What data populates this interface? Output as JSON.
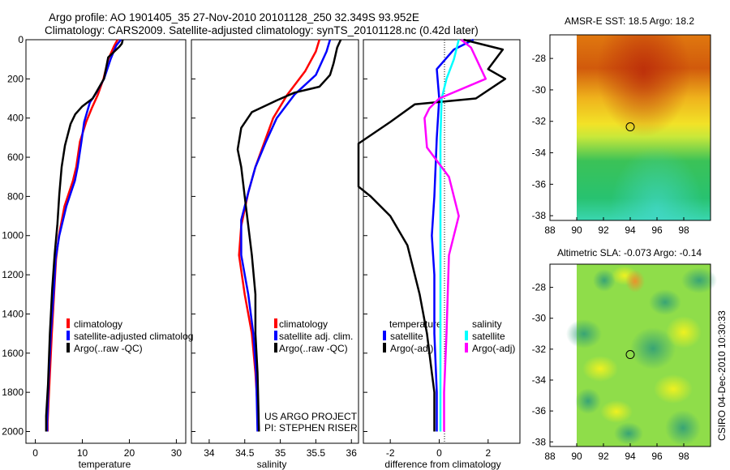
{
  "header": {
    "line1": "Argo profile: AO 1901405_35 27-Nov-2010 20101128_250 32.349S 93.952E",
    "line2": "Climatology: CARS2009. Satellite-adjusted climatology: synTS_20101128.nc (0.42d later)"
  },
  "colors": {
    "climatology": "#ff0000",
    "satellite": "#0000ff",
    "argo": "#000000",
    "salinity_satellite": "#00ffff",
    "salinity_argo": "#ff00ff"
  },
  "depth_axis": {
    "ticks": [
      "0",
      "200",
      "400",
      "600",
      "800",
      "1000",
      "1200",
      "1400",
      "1600",
      "1800",
      "2000"
    ]
  },
  "chart_data": [
    {
      "type": "line",
      "name": "temperature-panel",
      "xlabel": "temperature",
      "xlim": [
        -2,
        32
      ],
      "ylim": [
        2060,
        0
      ],
      "xticks": [
        0,
        10,
        20,
        30
      ],
      "xtick_labels": [
        "0",
        "10",
        "20",
        "30"
      ],
      "legend": [
        "climatology",
        "satellite-adjusted climatolog",
        "Argo(..raw -QC)"
      ],
      "series": [
        {
          "name": "climatology",
          "color": "#ff0000",
          "points": [
            [
              17.5,
              0
            ],
            [
              16.8,
              30
            ],
            [
              15.5,
              100
            ],
            [
              14.5,
              200
            ],
            [
              13.3,
              280
            ],
            [
              12.0,
              350
            ],
            [
              10.8,
              420
            ],
            [
              9.5,
              520
            ],
            [
              8.7,
              650
            ],
            [
              8.0,
              720
            ],
            [
              6.2,
              850
            ],
            [
              5.0,
              1000
            ],
            [
              4.4,
              1120
            ],
            [
              4.1,
              1250
            ],
            [
              3.5,
              1500
            ],
            [
              3.0,
              1750
            ],
            [
              2.6,
              1950
            ],
            [
              2.6,
              2000
            ]
          ]
        },
        {
          "name": "satellite",
          "color": "#0000ff",
          "points": [
            [
              18.2,
              0
            ],
            [
              17.2,
              30
            ],
            [
              16.0,
              100
            ],
            [
              14.6,
              200
            ],
            [
              13.0,
              270
            ],
            [
              11.6,
              320
            ],
            [
              10.4,
              420
            ],
            [
              9.8,
              520
            ],
            [
              9.0,
              650
            ],
            [
              8.4,
              720
            ],
            [
              6.6,
              850
            ],
            [
              5.1,
              1000
            ],
            [
              4.3,
              1120
            ],
            [
              4.0,
              1250
            ],
            [
              3.3,
              1500
            ],
            [
              2.8,
              1750
            ],
            [
              2.5,
              1950
            ],
            [
              2.5,
              2000
            ]
          ]
        },
        {
          "name": "argo",
          "color": "#000000",
          "points": [
            [
              18.6,
              0
            ],
            [
              18.4,
              20
            ],
            [
              17.9,
              35
            ],
            [
              15.5,
              90
            ],
            [
              14.6,
              200
            ],
            [
              12.2,
              300
            ],
            [
              10.0,
              340
            ],
            [
              8.5,
              380
            ],
            [
              7.5,
              430
            ],
            [
              6.3,
              540
            ],
            [
              5.6,
              650
            ],
            [
              5.1,
              790
            ],
            [
              4.7,
              940
            ],
            [
              4.1,
              1100
            ],
            [
              3.6,
              1270
            ],
            [
              3.1,
              1500
            ],
            [
              2.7,
              1760
            ],
            [
              2.3,
              1920
            ],
            [
              2.3,
              2000
            ]
          ]
        }
      ]
    },
    {
      "type": "line",
      "name": "salinity-panel",
      "xlabel": "salinity",
      "xlim": [
        33.75,
        36.1
      ],
      "ylim": [
        2060,
        0
      ],
      "xticks": [
        34,
        34.5,
        35,
        35.5,
        36
      ],
      "xtick_labels": [
        "34",
        "34.5",
        "35",
        "35.5",
        "36"
      ],
      "legend": [
        "climatology",
        "satellite adj. clim.",
        "Argo(..raw -QC)"
      ],
      "series": [
        {
          "name": "climatology",
          "color": "#ff0000",
          "points": [
            [
              35.55,
              0
            ],
            [
              35.5,
              60
            ],
            [
              35.35,
              160
            ],
            [
              35.1,
              280
            ],
            [
              34.9,
              400
            ],
            [
              34.8,
              500
            ],
            [
              34.65,
              650
            ],
            [
              34.55,
              780
            ],
            [
              34.45,
              950
            ],
            [
              34.42,
              1100
            ],
            [
              34.5,
              1300
            ],
            [
              34.6,
              1500
            ],
            [
              34.65,
              1700
            ],
            [
              34.7,
              2000
            ]
          ]
        },
        {
          "name": "satellite",
          "color": "#0000ff",
          "points": [
            [
              35.7,
              0
            ],
            [
              35.65,
              60
            ],
            [
              35.5,
              180
            ],
            [
              35.2,
              280
            ],
            [
              34.95,
              400
            ],
            [
              34.8,
              520
            ],
            [
              34.65,
              650
            ],
            [
              34.55,
              780
            ],
            [
              34.45,
              920
            ],
            [
              34.45,
              1100
            ],
            [
              34.55,
              1300
            ],
            [
              34.62,
              1500
            ],
            [
              34.66,
              1700
            ],
            [
              34.68,
              2000
            ]
          ]
        },
        {
          "name": "argo",
          "color": "#000000",
          "points": [
            [
              35.85,
              0
            ],
            [
              35.8,
              40
            ],
            [
              35.75,
              120
            ],
            [
              35.7,
              180
            ],
            [
              35.65,
              200
            ],
            [
              35.55,
              240
            ],
            [
              35.2,
              270
            ],
            [
              34.95,
              310
            ],
            [
              34.6,
              370
            ],
            [
              34.45,
              450
            ],
            [
              34.4,
              560
            ],
            [
              34.45,
              650
            ],
            [
              34.5,
              800
            ],
            [
              34.55,
              950
            ],
            [
              34.6,
              1100
            ],
            [
              34.65,
              1300
            ],
            [
              34.65,
              1500
            ],
            [
              34.68,
              1700
            ],
            [
              34.7,
              2000
            ]
          ]
        }
      ]
    },
    {
      "type": "line",
      "name": "difference-panel",
      "xlabel": "difference from climatology",
      "xlim": [
        -3.1,
        3.3
      ],
      "ylim": [
        2060,
        0
      ],
      "xticks": [
        -2,
        0,
        2
      ],
      "xtick_labels": [
        "-2",
        "0",
        "2"
      ],
      "legend_headers": [
        "temperature",
        "salinity"
      ],
      "legend": [
        "satellite",
        "Argo(-adj)",
        "satellite",
        "Argo(-adj)"
      ],
      "series": [
        {
          "name": "temperature satellite",
          "color": "#0000ff",
          "points": [
            [
              1.4,
              0
            ],
            [
              0.6,
              50
            ],
            [
              -0.1,
              150
            ],
            [
              0,
              300
            ],
            [
              -0.1,
              500
            ],
            [
              -0.2,
              800
            ],
            [
              -0.3,
              1000
            ],
            [
              -0.2,
              1200
            ],
            [
              -0.2,
              1500
            ],
            [
              -0.1,
              1800
            ],
            [
              -0.1,
              2000
            ]
          ]
        },
        {
          "name": "temperature argo",
          "color": "#000000",
          "points": [
            [
              1.0,
              0
            ],
            [
              2.6,
              50
            ],
            [
              2.0,
              150
            ],
            [
              2.7,
              200
            ],
            [
              1.5,
              300
            ],
            [
              -1.0,
              330
            ],
            [
              -2.0,
              420
            ],
            [
              -3.3,
              530
            ],
            [
              -3.3,
              620
            ],
            [
              -3.3,
              750
            ],
            [
              -2.8,
              800
            ],
            [
              -2.0,
              900
            ],
            [
              -1.3,
              1050
            ],
            [
              -0.8,
              1300
            ],
            [
              -0.5,
              1500
            ],
            [
              -0.3,
              1700
            ],
            [
              -0.2,
              1800
            ],
            [
              -0.2,
              2000
            ]
          ]
        },
        {
          "name": "salinity satellite",
          "color": "#00ffff",
          "points": [
            [
              0.8,
              0
            ],
            [
              0.6,
              100
            ],
            [
              0.3,
              200
            ],
            [
              0.1,
              300
            ],
            [
              0.05,
              500
            ],
            [
              0.05,
              800
            ],
            [
              0.05,
              1200
            ],
            [
              0.05,
              1600
            ],
            [
              0.05,
              2000
            ]
          ]
        },
        {
          "name": "salinity argo",
          "color": "#ff00ff",
          "points": [
            [
              0.9,
              0
            ],
            [
              1.3,
              40
            ],
            [
              1.9,
              200
            ],
            [
              0,
              300
            ],
            [
              -0.4,
              350
            ],
            [
              -0.6,
              400
            ],
            [
              -0.5,
              550
            ],
            [
              0.4,
              700
            ],
            [
              0.8,
              900
            ],
            [
              0.4,
              1100
            ],
            [
              0.3,
              1500
            ],
            [
              0.2,
              1800
            ],
            [
              0.2,
              2000
            ]
          ]
        }
      ]
    },
    {
      "type": "heatmap",
      "name": "amsre-sst-map",
      "title": "AMSR-E SST: 18.5 Argo: 18.2",
      "xlim": [
        88,
        100
      ],
      "ylim": [
        -38.3,
        -26.5
      ],
      "xticks": [
        88,
        90,
        92,
        94,
        96,
        98
      ],
      "xtick_labels": [
        "88",
        "90",
        "92",
        "94",
        "96",
        "98"
      ],
      "yticks": [
        -28,
        -30,
        -32,
        -34,
        -36,
        -38
      ],
      "ytick_labels": [
        "-28",
        "-30",
        "-32",
        "-34",
        "-36",
        "-38"
      ],
      "marker": [
        94,
        -32.35
      ]
    },
    {
      "type": "heatmap",
      "name": "altimetric-sla-map",
      "title": "Altimetric SLA: -0.073 Argo: -0.14",
      "xlim": [
        88,
        100
      ],
      "ylim": [
        -38.3,
        -26.5
      ],
      "xticks": [
        88,
        90,
        92,
        94,
        96,
        98
      ],
      "xtick_labels": [
        "88",
        "90",
        "92",
        "94",
        "96",
        "98"
      ],
      "yticks": [
        -28,
        -30,
        -32,
        -34,
        -36,
        -38
      ],
      "ytick_labels": [
        "-28",
        "-30",
        "-32",
        "-34",
        "-36",
        "-38"
      ],
      "marker": [
        94,
        -32.35
      ]
    }
  ],
  "panel_text": {
    "project": "US ARGO PROJECT",
    "pi": "PI: STEPHEN RISER",
    "credit": "CSIRO 04-Dec-2010 10:30:33"
  }
}
